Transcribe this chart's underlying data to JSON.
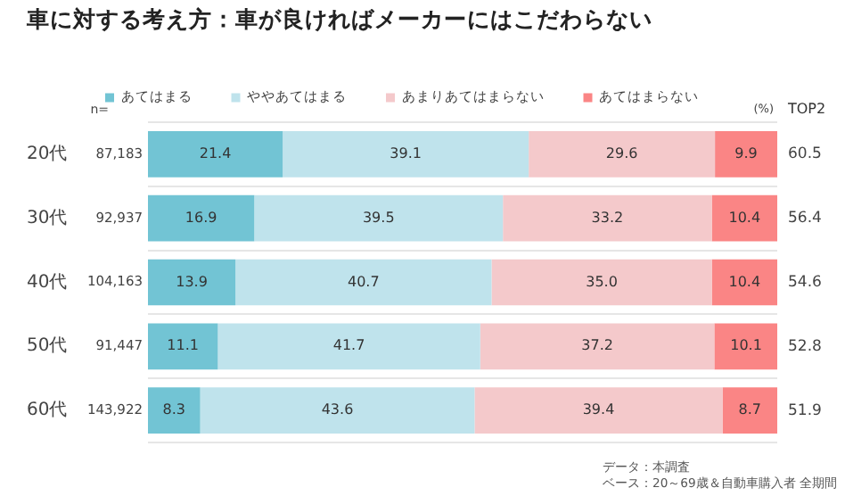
{
  "chart_data": {
    "type": "bar",
    "orientation": "horizontal",
    "stacked": true,
    "title": "車に対する考え方：車が良ければメーカーにはこだわらない",
    "categories": [
      "20代",
      "30代",
      "40代",
      "50代",
      "60代"
    ],
    "series": [
      {
        "name": "あてはまる",
        "color": "#72c4d4",
        "values": [
          21.4,
          16.9,
          13.9,
          11.1,
          8.3
        ],
        "value_labels": [
          "21.4",
          "16.9",
          "13.9",
          "11.1",
          "8.3"
        ]
      },
      {
        "name": "ややあてはまる",
        "color": "#bfe3ec",
        "values": [
          39.1,
          39.5,
          40.7,
          41.7,
          43.6
        ],
        "value_labels": [
          "39.1",
          "39.5",
          "40.7",
          "41.7",
          "43.6"
        ]
      },
      {
        "name": "あまりあてはまらない",
        "color": "#f4c9cb",
        "values": [
          29.6,
          33.2,
          35.0,
          37.2,
          39.4
        ],
        "value_labels": [
          "29.6",
          "33.2",
          "35.0",
          "37.2",
          "39.4"
        ]
      },
      {
        "name": "あてはまらない",
        "color": "#fa8585",
        "values": [
          9.9,
          10.4,
          10.4,
          10.1,
          8.7
        ],
        "value_labels": [
          "9.9",
          "10.4",
          "10.4",
          "10.1",
          "8.7"
        ]
      }
    ],
    "xlim": [
      0,
      100
    ],
    "tick_labels": "y",
    "grid": "y",
    "legend": "top",
    "annotations": [
      "n=",
      "87,183",
      "92,937",
      "104,163",
      "91,447",
      "143,922",
      "(%)",
      "TOP2",
      "60.5",
      "56.4",
      "54.6",
      "52.8",
      "51.9",
      "データ：本調査",
      "ベース：20～69歳＆自動車購入者 全期間"
    ]
  }
}
